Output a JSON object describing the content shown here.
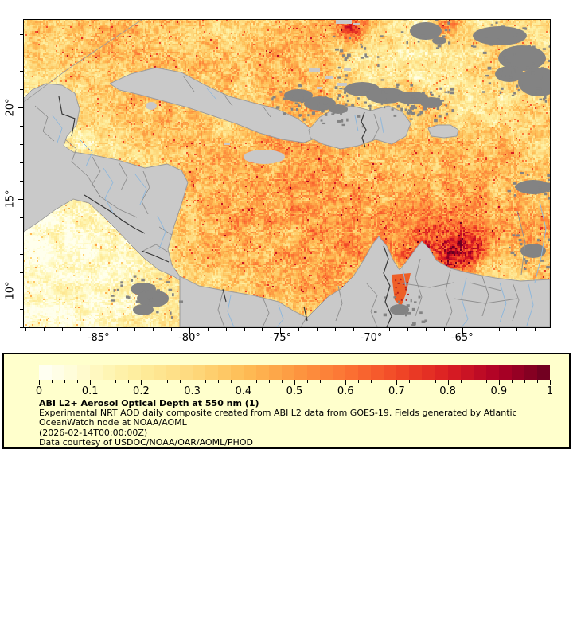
{
  "legend": {
    "title": "ABI L2+ Aerosol Optical Depth at 550 nm (1)",
    "lines": [
      "Experimental NRT AOD daily composite created from ABI L2 data from GOES-19. Fields generated by Atlantic",
      "OceanWatch node at NOAA/AOML",
      "(2026-02-14T00:00:00Z)",
      "Data courtesy of USDOC/NOAA/OAR/AOML/PHOD"
    ],
    "background": "#FFFFCC",
    "colorbar": {
      "min": 0,
      "max": 1,
      "segments": 40,
      "minor_step": 0.025,
      "tick_values": [
        0,
        0.1,
        0.2,
        0.3,
        0.4,
        0.5,
        0.6,
        0.7,
        0.8,
        0.9,
        1
      ],
      "tick_labels": [
        "0",
        "0.1",
        "0.2",
        "0.3",
        "0.4",
        "0.5",
        "0.6",
        "0.7",
        "0.8",
        "0.9",
        "1"
      ]
    }
  },
  "map": {
    "x_axis": {
      "major_values": [
        -85,
        -80,
        -75,
        -70,
        -65
      ],
      "major_labels": [
        "-85°",
        "-80°",
        "-75°",
        "-70°",
        "-65°"
      ],
      "minor_step_deg": 1,
      "lon_min": -89.1,
      "lon_max": -60.18
    },
    "y_axis": {
      "major_values": [
        10,
        15,
        20
      ],
      "major_labels": [
        "10°",
        "15°",
        "20°"
      ],
      "minor_step_deg": 1,
      "lat_min": 7.99,
      "lat_max": 24.78
    }
  },
  "colors": {
    "background": "#FFFFFF",
    "legend_bg": "#FFFFCC",
    "land": "#C9C9C9",
    "coastline": "#9C9C9C",
    "cloud": "#838383",
    "admin_border": "#909090",
    "country_border": "#383838",
    "river": "#8FB8DC",
    "colormap_stops": [
      [
        0.0,
        "#FFFFF6"
      ],
      [
        0.05,
        "#FFFEE0"
      ],
      [
        0.1,
        "#FFF9C6"
      ],
      [
        0.15,
        "#FEF3AE"
      ],
      [
        0.2,
        "#FEEC9B"
      ],
      [
        0.3,
        "#FED97D"
      ],
      [
        0.4,
        "#FEBE56"
      ],
      [
        0.5,
        "#FD9941"
      ],
      [
        0.6,
        "#FC7434"
      ],
      [
        0.7,
        "#F24A27"
      ],
      [
        0.8,
        "#DB1E22"
      ],
      [
        0.9,
        "#AD0026"
      ],
      [
        0.95,
        "#8F0023"
      ],
      [
        1.0,
        "#680020"
      ]
    ]
  },
  "chart_data": {
    "type": "heatmap",
    "title": "ABI L2+ Aerosol Optical Depth at 550 nm (1)",
    "variable": "Aerosol Optical Depth at 550 nm",
    "value_range": [
      0,
      1
    ],
    "colorbar_ticks": [
      0,
      0.1,
      0.2,
      0.3,
      0.4,
      0.5,
      0.6,
      0.7,
      0.8,
      0.9,
      1
    ],
    "lon_range_deg": [
      -89.1,
      -60.18
    ],
    "lat_range_deg": [
      7.99,
      24.78
    ],
    "x_tick_labels": [
      "-85°",
      "-80°",
      "-75°",
      "-70°",
      "-65°"
    ],
    "y_tick_labels": [
      "10°",
      "15°",
      "20°"
    ],
    "legend_position": "bottom",
    "grid": false
  }
}
